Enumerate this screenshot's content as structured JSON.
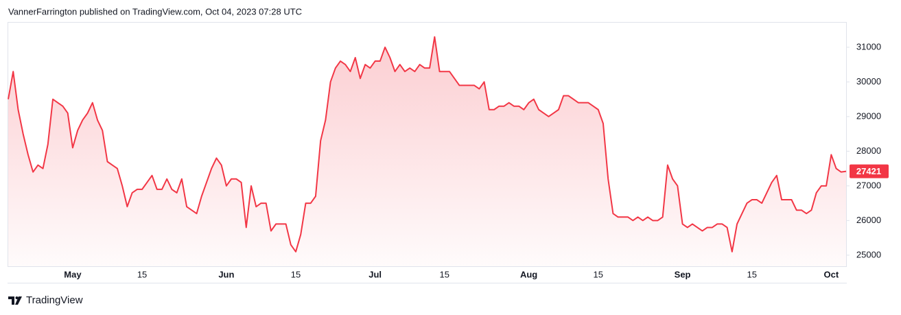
{
  "header": {
    "text": "VannerFarrington published on TradingView.com, Oct 04, 2023 07:28 UTC"
  },
  "footer": {
    "text": "TradingView"
  },
  "chart_data": {
    "type": "line",
    "area": true,
    "color": "#f23645",
    "ylim": [
      24680,
      31710
    ],
    "yticks": [
      25000,
      26000,
      27000,
      28000,
      29000,
      30000,
      31000
    ],
    "categories": [
      null,
      null,
      null,
      null,
      null,
      null,
      null,
      null,
      null,
      null,
      null,
      null,
      null,
      "May",
      null,
      null,
      null,
      null,
      null,
      null,
      null,
      null,
      null,
      null,
      null,
      null,
      null,
      "15",
      null,
      null,
      null,
      null,
      null,
      null,
      null,
      null,
      null,
      null,
      null,
      null,
      null,
      null,
      null,
      null,
      "Jun",
      null,
      null,
      null,
      null,
      null,
      null,
      null,
      null,
      null,
      null,
      null,
      null,
      null,
      "15",
      null,
      null,
      null,
      null,
      null,
      null,
      null,
      null,
      null,
      null,
      null,
      null,
      null,
      null,
      null,
      "Jul",
      null,
      null,
      null,
      null,
      null,
      null,
      null,
      null,
      null,
      null,
      null,
      null,
      null,
      "15",
      null,
      null,
      null,
      null,
      null,
      null,
      null,
      null,
      null,
      null,
      null,
      null,
      null,
      null,
      null,
      null,
      "Aug",
      null,
      null,
      null,
      null,
      null,
      null,
      null,
      null,
      null,
      null,
      null,
      null,
      null,
      "15",
      null,
      null,
      null,
      null,
      null,
      null,
      null,
      null,
      null,
      null,
      null,
      null,
      null,
      null,
      null,
      null,
      "Sep",
      null,
      null,
      null,
      null,
      null,
      null,
      null,
      null,
      null,
      null,
      null,
      null,
      null,
      "15",
      null,
      null,
      null,
      null,
      null,
      null,
      null,
      null,
      null,
      null,
      null,
      null,
      null,
      null,
      null,
      "Oct",
      null,
      null,
      null
    ],
    "values": [
      29500,
      30300,
      29200,
      28500,
      27900,
      27400,
      27600,
      27500,
      28200,
      29500,
      29400,
      29300,
      29100,
      28100,
      28600,
      28900,
      29100,
      29400,
      28900,
      28600,
      27700,
      27600,
      27500,
      27000,
      26400,
      26800,
      26900,
      26900,
      27100,
      27300,
      26900,
      26900,
      27200,
      26900,
      26800,
      27200,
      26400,
      26300,
      26200,
      26700,
      27100,
      27500,
      27800,
      27600,
      27000,
      27200,
      27200,
      27100,
      25800,
      27000,
      26400,
      26500,
      26500,
      25700,
      25900,
      25900,
      25900,
      25300,
      25100,
      25600,
      26500,
      26500,
      26700,
      28300,
      28900,
      30000,
      30400,
      30600,
      30500,
      30300,
      30700,
      30100,
      30500,
      30400,
      30600,
      30600,
      31000,
      30700,
      30300,
      30500,
      30300,
      30400,
      30300,
      30500,
      30400,
      30400,
      31300,
      30300,
      30300,
      30300,
      30100,
      29900,
      29900,
      29900,
      29900,
      29800,
      30000,
      29200,
      29200,
      29300,
      29300,
      29400,
      29300,
      29300,
      29200,
      29400,
      29500,
      29200,
      29100,
      29000,
      29100,
      29200,
      29600,
      29600,
      29500,
      29400,
      29400,
      29400,
      29300,
      29200,
      28800,
      27200,
      26200,
      26100,
      26100,
      26100,
      26000,
      26100,
      26000,
      26100,
      26000,
      26000,
      26100,
      27600,
      27200,
      27000,
      25900,
      25800,
      25900,
      25800,
      25700,
      25800,
      25800,
      25900,
      25900,
      25800,
      25100,
      25900,
      26200,
      26500,
      26600,
      26600,
      26500,
      26800,
      27100,
      27300,
      26600,
      26600,
      26600,
      26300,
      26300,
      26200,
      26300,
      26800,
      27000,
      27000,
      27900,
      27500,
      27400,
      27421
    ]
  }
}
